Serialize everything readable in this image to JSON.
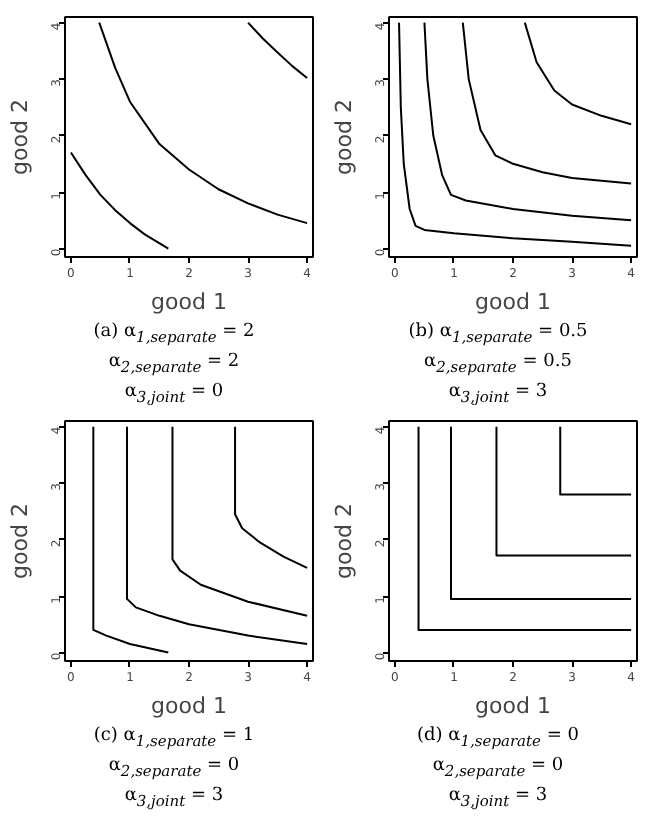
{
  "chart_data": [
    {
      "type": "line",
      "xlabel": "good 1",
      "ylabel": "good 2",
      "xlim": [
        -0.1,
        4.1
      ],
      "ylim": [
        -0.15,
        4.1
      ],
      "xticks": [
        0,
        1,
        2,
        3,
        4
      ],
      "yticks": [
        0,
        1,
        2,
        3,
        4
      ],
      "grid": false,
      "marker": "none",
      "line_style": "solid",
      "annotations": [
        "(a) α$_{1,separate}$ = 2",
        "α$_{2,separate}$ = 2",
        "α$_{3,joint}$ = 0"
      ],
      "series": [
        {
          "color": "#000000",
          "x": [
            0,
            0.25,
            0.5,
            0.75,
            1.0,
            1.25,
            1.65
          ],
          "values": [
            1.7,
            1.3,
            0.95,
            0.68,
            0.45,
            0.25,
            0.0
          ]
        },
        {
          "color": "#000000",
          "x": [
            0.48,
            0.75,
            1.0,
            1.5,
            2.0,
            2.5,
            3.0,
            3.5,
            4.0
          ],
          "values": [
            4.0,
            3.2,
            2.6,
            1.85,
            1.4,
            1.05,
            0.8,
            0.6,
            0.45
          ]
        },
        {
          "color": "#000000",
          "x": [
            3.0,
            3.25,
            3.5,
            3.75,
            4.0
          ],
          "values": [
            4.0,
            3.72,
            3.47,
            3.23,
            3.02
          ]
        }
      ]
    },
    {
      "type": "line",
      "xlabel": "good 1",
      "ylabel": "good 2",
      "xlim": [
        -0.1,
        4.1
      ],
      "ylim": [
        -0.15,
        4.1
      ],
      "xticks": [
        0,
        1,
        2,
        3,
        4
      ],
      "yticks": [
        0,
        1,
        2,
        3,
        4
      ],
      "grid": false,
      "marker": "none",
      "line_style": "solid",
      "annotations": [
        "(b) α$_{1,separate}$ = 0.5",
        "α$_{2,separate}$ = 0.5",
        "α$_{3,joint}$ = 3"
      ],
      "series": [
        {
          "color": "#000000",
          "x": [
            0.07,
            0.1,
            0.15,
            0.25,
            0.35,
            0.5,
            1,
            2,
            3,
            4
          ],
          "values": [
            4,
            2.5,
            1.5,
            0.7,
            0.4,
            0.33,
            0.27,
            0.18,
            0.12,
            0.05
          ]
        },
        {
          "color": "#000000",
          "x": [
            0.5,
            0.55,
            0.65,
            0.8,
            0.95,
            1.2,
            2,
            3,
            4
          ],
          "values": [
            4,
            3,
            2,
            1.3,
            0.95,
            0.85,
            0.7,
            0.58,
            0.5
          ]
        },
        {
          "color": "#000000",
          "x": [
            1.15,
            1.25,
            1.45,
            1.7,
            2,
            2.5,
            3,
            4
          ],
          "values": [
            4,
            3,
            2.1,
            1.65,
            1.5,
            1.35,
            1.25,
            1.15
          ]
        },
        {
          "color": "#000000",
          "x": [
            2.2,
            2.4,
            2.7,
            3,
            3.5,
            4
          ],
          "values": [
            4,
            3.3,
            2.8,
            2.55,
            2.35,
            2.2
          ]
        }
      ]
    },
    {
      "type": "line",
      "xlabel": "good 1",
      "ylabel": "good 2",
      "xlim": [
        -0.1,
        4.1
      ],
      "ylim": [
        -0.15,
        4.1
      ],
      "xticks": [
        0,
        1,
        2,
        3,
        4
      ],
      "yticks": [
        0,
        1,
        2,
        3,
        4
      ],
      "grid": false,
      "marker": "none",
      "line_style": "solid",
      "annotations": [
        "(c) α$_{1,separate}$ = 1",
        "α$_{2,separate}$ = 0",
        "α$_{3,joint}$ = 3"
      ],
      "series": [
        {
          "color": "#000000",
          "x": [
            0.38,
            0.38,
            0.6,
            1,
            1.65
          ],
          "values": [
            4,
            0.4,
            0.3,
            0.15,
            0.0
          ]
        },
        {
          "color": "#000000",
          "x": [
            0.95,
            0.95,
            1.1,
            1.5,
            2,
            3,
            4
          ],
          "values": [
            4,
            0.95,
            0.8,
            0.65,
            0.5,
            0.3,
            0.15
          ]
        },
        {
          "color": "#000000",
          "x": [
            1.72,
            1.72,
            1.85,
            2.2,
            3,
            4
          ],
          "values": [
            4,
            1.65,
            1.45,
            1.2,
            0.9,
            0.65
          ]
        },
        {
          "color": "#000000",
          "x": [
            2.78,
            2.78,
            2.9,
            3.2,
            3.6,
            4
          ],
          "values": [
            4,
            2.45,
            2.2,
            1.95,
            1.7,
            1.5
          ]
        }
      ]
    },
    {
      "type": "line",
      "xlabel": "good 1",
      "ylabel": "good 2",
      "xlim": [
        -0.1,
        4.1
      ],
      "ylim": [
        -0.15,
        4.1
      ],
      "xticks": [
        0,
        1,
        2,
        3,
        4
      ],
      "yticks": [
        0,
        1,
        2,
        3,
        4
      ],
      "grid": false,
      "marker": "none",
      "line_style": "solid",
      "annotations": [
        "(d) α$_{1,separate}$ = 0",
        "α$_{2,separate}$ = 0",
        "α$_{3,joint}$ = 3"
      ],
      "series": [
        {
          "color": "#000000",
          "x": [
            0.4,
            0.4,
            4
          ],
          "values": [
            4,
            0.4,
            0.4
          ]
        },
        {
          "color": "#000000",
          "x": [
            0.95,
            0.95,
            4
          ],
          "values": [
            4,
            0.95,
            0.95
          ]
        },
        {
          "color": "#000000",
          "x": [
            1.72,
            1.72,
            4
          ],
          "values": [
            4,
            1.72,
            1.72
          ]
        },
        {
          "color": "#000000",
          "x": [
            2.8,
            2.8,
            4
          ],
          "values": [
            4,
            2.8,
            2.8
          ]
        }
      ]
    }
  ]
}
